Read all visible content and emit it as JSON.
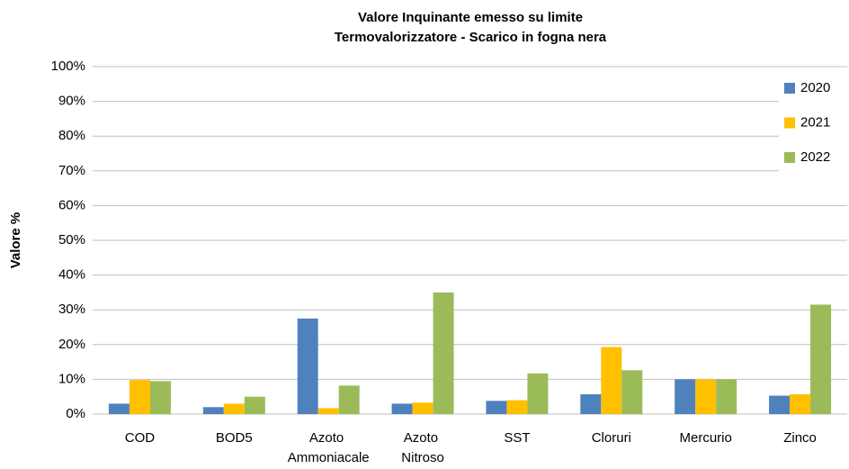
{
  "chart_data": {
    "type": "bar",
    "title": [
      "Valore Inquinante emesso su limite",
      "Termovalorizzatore - Scarico in fogna nera"
    ],
    "y_label": "Valore %",
    "categories": [
      "COD",
      "BOD5",
      "Azoto Ammoniacale",
      "Azoto Nitroso",
      "SST",
      "Cloruri",
      "Mercurio",
      "Zinco"
    ],
    "series": [
      {
        "name": "2020",
        "color": "#4f81bd",
        "values": [
          3,
          2,
          27.5,
          3,
          3.8,
          5.7,
          10,
          5.3
        ]
      },
      {
        "name": "2021",
        "color": "#ffc000",
        "values": [
          9.8,
          3,
          1.7,
          3.3,
          4,
          19.3,
          10,
          5.7
        ]
      },
      {
        "name": "2022",
        "color": "#9bbb59",
        "values": [
          9.5,
          5,
          8.2,
          35,
          11.7,
          12.6,
          10,
          31.5
        ]
      }
    ],
    "ylim": [
      0,
      100
    ],
    "yticks": [
      {
        "value": 0,
        "label": "0%"
      },
      {
        "value": 10,
        "label": "10%"
      },
      {
        "value": 20,
        "label": "20%"
      },
      {
        "value": 30,
        "label": "30%"
      },
      {
        "value": 40,
        "label": "40%"
      },
      {
        "value": 50,
        "label": "50%"
      },
      {
        "value": 60,
        "label": "60%"
      },
      {
        "value": 70,
        "label": "70%"
      },
      {
        "value": 80,
        "label": "80%"
      },
      {
        "value": 90,
        "label": "90%"
      },
      {
        "value": 100,
        "label": "100%"
      }
    ],
    "grid": true,
    "legend": "upper right"
  }
}
